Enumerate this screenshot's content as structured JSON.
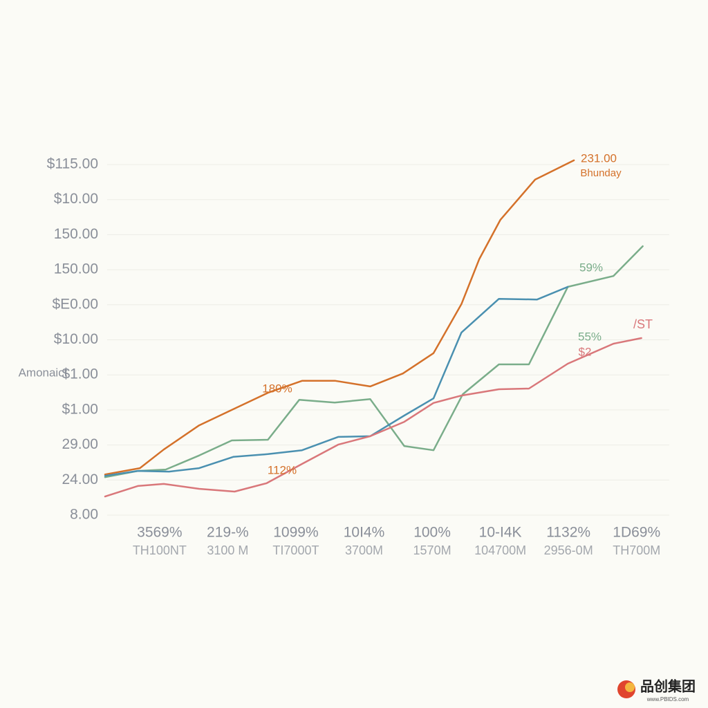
{
  "chart_data": {
    "type": "line",
    "y_label": "Amonaict",
    "categories": [
      "3569%",
      "219-%",
      "1099%",
      "10I4%",
      "100%",
      "10-I4K",
      "1132%",
      "1D69%"
    ],
    "subcategories": [
      "TH100NT",
      "3100 M",
      "TI7000T",
      "3700M",
      "1570M",
      "104700M",
      "2956-0M",
      "TH700M"
    ],
    "xlim": [
      -0.3,
      8.0
    ],
    "ylim": [
      0,
      10.5
    ],
    "yticks": [
      {
        "value": 0,
        "label": "8.00"
      },
      {
        "value": 1,
        "label": "24.00"
      },
      {
        "value": 2,
        "label": "29.00"
      },
      {
        "value": 3,
        "label": "$1.00"
      },
      {
        "value": 4,
        "label": "$1.00"
      },
      {
        "value": 5,
        "label": "$10.00"
      },
      {
        "value": 6,
        "label": "$E0.00"
      },
      {
        "value": 7,
        "label": "150.00"
      },
      {
        "value": 8,
        "label": "150.00"
      },
      {
        "value": 9,
        "label": "$10.00"
      },
      {
        "value": 10,
        "label": "$115.00"
      }
    ],
    "grid": true,
    "series": [
      {
        "color": "#d4712a",
        "x": [
          -0.3,
          0.21,
          0.56,
          1.08,
          1.58,
          2.09,
          2.59,
          3.08,
          3.59,
          4.07,
          4.52,
          4.93,
          5.19,
          5.5,
          6.01,
          6.58
        ],
        "values": [
          1.16,
          1.34,
          1.87,
          2.56,
          3.02,
          3.49,
          3.83,
          3.83,
          3.67,
          4.04,
          4.62,
          6.02,
          7.3,
          8.42,
          9.57,
          10.12
        ]
      },
      {
        "color": "#7aad8a",
        "x": [
          -0.3,
          0.18,
          0.59,
          1.08,
          1.56,
          2.09,
          2.55,
          3.07,
          3.59,
          4.09,
          4.52,
          4.95,
          5.48,
          5.92,
          6.49,
          7.16,
          7.59
        ],
        "values": [
          1.08,
          1.26,
          1.3,
          1.7,
          2.13,
          2.15,
          3.29,
          3.21,
          3.31,
          1.97,
          1.85,
          3.45,
          4.3,
          4.3,
          6.51,
          6.82,
          7.67
        ]
      },
      {
        "color": "#4a90b0",
        "x": [
          -0.3,
          0.18,
          0.64,
          1.08,
          1.58,
          2.09,
          2.59,
          3.12,
          3.59,
          4.09,
          4.52,
          4.93,
          5.48,
          6.04,
          6.49
        ],
        "values": [
          1.12,
          1.26,
          1.24,
          1.34,
          1.66,
          1.74,
          1.85,
          2.23,
          2.25,
          2.84,
          3.33,
          5.21,
          6.17,
          6.15,
          6.51
        ]
      },
      {
        "color": "#d9777a",
        "x": [
          -0.3,
          0.18,
          0.56,
          1.08,
          1.6,
          2.07,
          2.59,
          3.12,
          3.59,
          4.09,
          4.52,
          4.93,
          5.48,
          5.92,
          6.49,
          7.16,
          7.57
        ],
        "values": [
          0.53,
          0.83,
          0.89,
          0.75,
          0.67,
          0.91,
          1.46,
          2.01,
          2.25,
          2.66,
          3.2,
          3.41,
          3.59,
          3.61,
          4.32,
          4.89,
          5.05
        ]
      }
    ],
    "annotations": [
      "180%",
      "112%",
      "231.00",
      "Bhunday",
      "59%",
      "55%",
      "$2",
      "/ST"
    ],
    "watermark": [
      "品创集团",
      "www.PBIDS.com"
    ]
  }
}
